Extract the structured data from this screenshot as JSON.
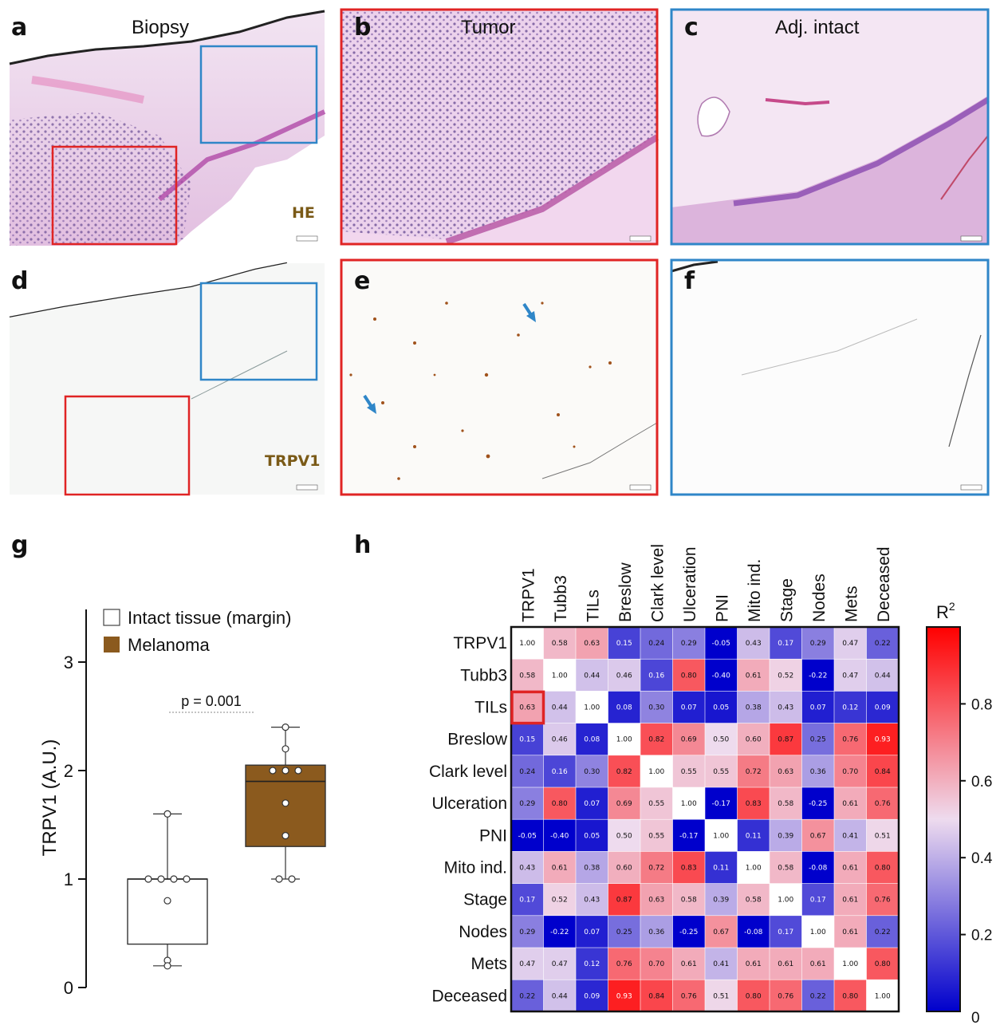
{
  "panels": {
    "a": {
      "letter": "a",
      "title": "Biopsy",
      "stain": "HE"
    },
    "b": {
      "letter": "b",
      "title": "Tumor"
    },
    "c": {
      "letter": "c",
      "title": "Adj. intact"
    },
    "d": {
      "letter": "d",
      "stain": "TRPV1"
    },
    "e": {
      "letter": "e"
    },
    "f": {
      "letter": "f"
    },
    "g": {
      "letter": "g"
    },
    "h": {
      "letter": "h"
    }
  },
  "colors": {
    "tumor_box": "#e02424",
    "intact_box": "#2f86c8",
    "he_stain": "#c86ab8",
    "dab_stain": "#a0521c",
    "melanoma_fill": "#8b5a1e"
  },
  "chart_data": [
    {
      "type": "box",
      "ylabel": "TRPV1 (A.U.)",
      "ylim": [
        0,
        3.5
      ],
      "yticks": [
        "0",
        "1",
        "2",
        "3"
      ],
      "legend": [
        {
          "name": "Intact tissue (margin)",
          "color": "#ffffff"
        },
        {
          "name": "Melanoma",
          "color": "#8b5a1e"
        }
      ],
      "annotation": "p = 0.001",
      "groups": [
        {
          "name": "Intact tissue (margin)",
          "min": 0.2,
          "q1": 0.4,
          "median": 1.0,
          "q3": 1.0,
          "max": 1.6,
          "points": [
            1.6,
            1.0,
            1.0,
            1.0,
            1.0,
            0.8,
            0.25,
            0.2
          ]
        },
        {
          "name": "Melanoma",
          "min": 1.0,
          "q1": 1.3,
          "median": 1.9,
          "q3": 2.05,
          "max": 2.4,
          "points": [
            2.4,
            2.2,
            2.0,
            2.0,
            2.0,
            1.7,
            1.4,
            1.0,
            1.0
          ]
        }
      ]
    },
    {
      "type": "heatmap",
      "colorbar_title": "R",
      "colorbar_exp": "2",
      "colorbar_ticks": [
        "0",
        "0.2",
        "0.4",
        "0.6",
        "0.8"
      ],
      "vmin": 0,
      "vmax": 1,
      "labels": [
        "TRPV1",
        "Tubb3",
        "TILs",
        "Breslow",
        "Clark level",
        "Ulceration",
        "PNI",
        "Mito ind.",
        "Stage",
        "Nodes",
        "Mets",
        "Deceased"
      ],
      "highlight": {
        "row": 2,
        "col": 0
      },
      "values": [
        [
          1.0,
          0.58,
          0.63,
          0.15,
          0.24,
          0.29,
          -0.05,
          0.43,
          0.17,
          0.29,
          0.47,
          0.22
        ],
        [
          0.58,
          1.0,
          0.44,
          0.46,
          0.16,
          0.8,
          -0.4,
          0.61,
          0.52,
          -0.22,
          0.47,
          0.44
        ],
        [
          0.63,
          0.44,
          1.0,
          0.08,
          0.3,
          0.07,
          0.05,
          0.38,
          0.43,
          0.07,
          0.12,
          0.09
        ],
        [
          0.15,
          0.46,
          0.08,
          1.0,
          0.82,
          0.69,
          0.5,
          0.6,
          0.87,
          0.25,
          0.76,
          0.93
        ],
        [
          0.24,
          0.16,
          0.3,
          0.82,
          1.0,
          0.55,
          0.55,
          0.72,
          0.63,
          0.36,
          0.7,
          0.84
        ],
        [
          0.29,
          0.8,
          0.07,
          0.69,
          0.55,
          1.0,
          -0.17,
          0.83,
          0.58,
          -0.25,
          0.61,
          0.76
        ],
        [
          -0.05,
          -0.4,
          0.05,
          0.5,
          0.55,
          -0.17,
          1.0,
          0.11,
          0.39,
          0.67,
          0.41,
          0.51
        ],
        [
          0.43,
          0.61,
          0.38,
          0.6,
          0.72,
          0.83,
          0.11,
          1.0,
          0.58,
          -0.08,
          0.61,
          0.8
        ],
        [
          0.17,
          0.52,
          0.43,
          0.87,
          0.63,
          0.58,
          0.39,
          0.58,
          1.0,
          0.17,
          0.61,
          0.76
        ],
        [
          0.29,
          -0.22,
          0.07,
          0.25,
          0.36,
          -0.25,
          0.67,
          -0.08,
          0.17,
          1.0,
          0.61,
          0.22
        ],
        [
          0.47,
          0.47,
          0.12,
          0.76,
          0.7,
          0.61,
          0.41,
          0.61,
          0.61,
          0.61,
          1.0,
          0.8
        ],
        [
          0.22,
          0.44,
          0.09,
          0.93,
          0.84,
          0.76,
          0.51,
          0.8,
          0.76,
          0.22,
          0.8,
          1.0
        ]
      ]
    }
  ]
}
